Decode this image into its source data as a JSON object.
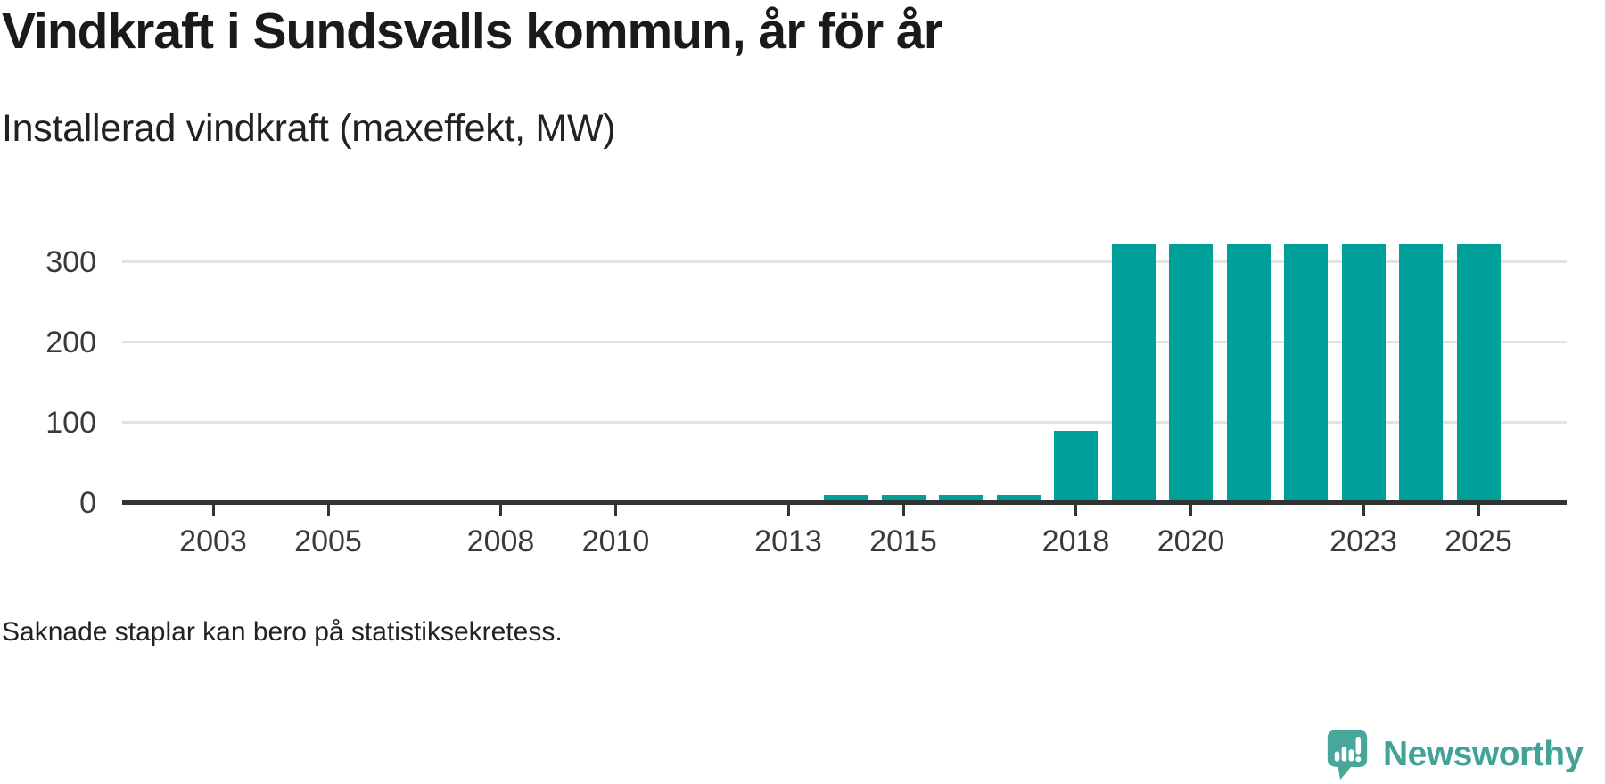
{
  "page": {
    "title": "Vindkraft i Sundsvalls kommun, år för år",
    "subtitle": "Installerad vindkraft (maxeffekt, MW)",
    "footnote": "Saknade staplar kan bero på statistiksekretess."
  },
  "branding": {
    "logo_text": "Newsworthy",
    "logo_icon": "newsworthy-speech-bubble-bar-chart-icon",
    "logo_color": "#42a296"
  },
  "colors": {
    "bar": "#00a09a",
    "axis_line": "#333333",
    "gridline": "#e3e3e3",
    "title_text": "#1a1a1a",
    "body_text": "#222222",
    "tick_label": "#3a3a3a",
    "background": "#ffffff"
  },
  "chart_data": {
    "type": "bar",
    "title": "Vindkraft i Sundsvalls kommun, år för år",
    "subtitle": "Installerad vindkraft (maxeffekt, MW)",
    "unit": "MW",
    "categories": [
      2014,
      2015,
      2016,
      2017,
      2018,
      2019,
      2020,
      2021,
      2022,
      2023,
      2024,
      2025
    ],
    "values": [
      8,
      8,
      8,
      8,
      88,
      320,
      320,
      320,
      320,
      320,
      320,
      320
    ],
    "x_ticks": [
      2003,
      2005,
      2008,
      2010,
      2013,
      2015,
      2018,
      2020,
      2023,
      2025
    ],
    "y_ticks": [
      0,
      100,
      200,
      300
    ],
    "xlim": [
      2001.5,
      2026.5
    ],
    "ylim": [
      0,
      355
    ],
    "xlabel": "",
    "ylabel": "",
    "grid": "horizontal",
    "legend": "none",
    "bar_color": "#00a09a",
    "note": "Bars missing for years before 2014; footnote explains possible statistical secrecy."
  }
}
